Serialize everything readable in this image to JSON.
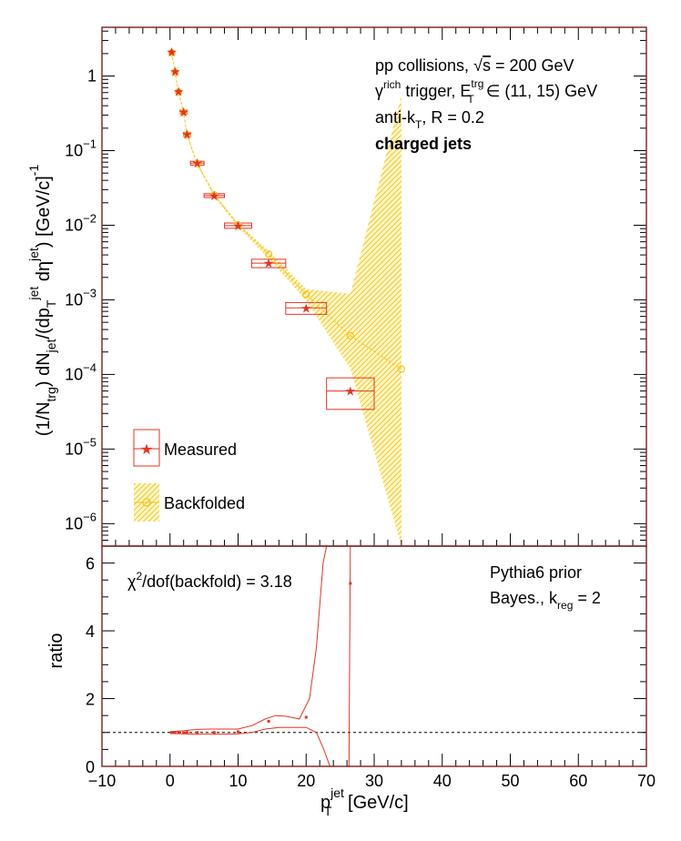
{
  "chart_data": [
    {
      "type": "scatter",
      "panel": "top",
      "yscale": "log",
      "ylim": [
        5e-07,
        4.5
      ],
      "xlim": [
        -10,
        70
      ],
      "ylabel": "(1/N_trg) dN_jet/(dp_T^jet dη^jet) [GeV/c]^-1",
      "grid": false,
      "legend_position": "bottom-left",
      "y_ticks": [
        {
          "v": 1,
          "base": "1",
          "exp": ""
        },
        {
          "v": 0.1,
          "base": "10",
          "exp": "−1"
        },
        {
          "v": 0.01,
          "base": "10",
          "exp": "−2"
        },
        {
          "v": 0.001,
          "base": "10",
          "exp": "−3"
        },
        {
          "v": 0.0001,
          "base": "10",
          "exp": "−4"
        },
        {
          "v": 1e-05,
          "base": "10",
          "exp": "−5"
        },
        {
          "v": 1e-06,
          "base": "10",
          "exp": "−6"
        }
      ],
      "annotations": {
        "line1_a": "pp collisions, ",
        "line1_sqrt": "√",
        "line1_s": "s",
        "line1_b": " = 200 GeV",
        "line2_gamma": "γ",
        "line2_rich": "rich",
        "line2_a": " trigger, E",
        "line2_trg": "trg",
        "line2_T": "T",
        "line2_b": " ∈ (11, 15) GeV",
        "line3_a": "anti-k",
        "line3_T": "T",
        "line3_b": ", R = 0.2",
        "line4": "charged jets"
      },
      "series": [
        {
          "name": "Measured",
          "color": "#e8321e",
          "marker": "star",
          "x": [
            0.25,
            0.75,
            1.25,
            2.0,
            2.5,
            4.0,
            6.5,
            10.0,
            14.5,
            20.0,
            26.5
          ],
          "y": [
            2.1,
            1.15,
            0.62,
            0.33,
            0.165,
            0.068,
            0.025,
            0.0099,
            0.0031,
            0.00078,
            6e-05
          ],
          "sys_box": [
            {
              "x0": 0.0,
              "x1": 0.5,
              "y0": 2.0,
              "y1": 2.2
            },
            {
              "x0": 0.5,
              "x1": 1.0,
              "y0": 1.09,
              "y1": 1.21
            },
            {
              "x0": 1.0,
              "x1": 1.5,
              "y0": 0.59,
              "y1": 0.65
            },
            {
              "x0": 1.5,
              "x1": 2.5,
              "y0": 0.31,
              "y1": 0.35
            },
            {
              "x0": 2.0,
              "x1": 3.0,
              "y0": 0.155,
              "y1": 0.175
            },
            {
              "x0": 3.0,
              "x1": 5.0,
              "y0": 0.064,
              "y1": 0.072
            },
            {
              "x0": 5.0,
              "x1": 8.0,
              "y0": 0.0235,
              "y1": 0.0265
            },
            {
              "x0": 8.0,
              "x1": 12.0,
              "y0": 0.0091,
              "y1": 0.0107
            },
            {
              "x0": 12.0,
              "x1": 17.0,
              "y0": 0.0027,
              "y1": 0.0035
            },
            {
              "x0": 17.0,
              "x1": 23.0,
              "y0": 0.00064,
              "y1": 0.00092
            },
            {
              "x0": 23.0,
              "x1": 30.0,
              "y0": 3.4e-05,
              "y1": 9e-05
            }
          ]
        },
        {
          "name": "Backfolded",
          "color": "#f5c518",
          "marker": "open-circle",
          "x": [
            0.25,
            0.75,
            1.25,
            2.0,
            2.5,
            4.0,
            6.5,
            10.0,
            14.5,
            20.0,
            26.5,
            34.0
          ],
          "y": [
            2.05,
            1.12,
            0.61,
            0.325,
            0.163,
            0.067,
            0.0255,
            0.0101,
            0.0041,
            0.00118,
            0.00033,
            0.000118
          ],
          "band_upper": [
            2.15,
            1.18,
            0.64,
            0.34,
            0.17,
            0.07,
            0.0268,
            0.0107,
            0.0045,
            0.0014,
            0.0012,
            0.55
          ],
          "band_lower": [
            1.95,
            1.06,
            0.58,
            0.31,
            0.155,
            0.064,
            0.0242,
            0.0095,
            0.0036,
            0.00098,
            0.00012,
            3e-07
          ]
        }
      ]
    },
    {
      "type": "line",
      "panel": "bottom",
      "xlim": [
        -10,
        70
      ],
      "ylim": [
        0,
        6.5
      ],
      "xlabel_base": "p",
      "xlabel_sup": "jet",
      "xlabel_sub": "T",
      "xlabel_unit": " [GeV/c]",
      "ylabel": "ratio",
      "x_ticks": [
        -10,
        0,
        10,
        20,
        30,
        40,
        50,
        60,
        70
      ],
      "x_tick_labels": [
        "−10",
        "0",
        "10",
        "20",
        "30",
        "40",
        "50",
        "60",
        "70"
      ],
      "y_ticks": [
        0,
        2,
        4,
        6
      ],
      "reference_line": 1,
      "annotations": {
        "chi2_chi": "χ",
        "chi2_sup": "2",
        "chi2_rest": "/dof(backfold) = 3.18",
        "prior": "Pythia6 prior",
        "bayes_a": "Bayes., k",
        "bayes_sub": "reg",
        "bayes_b": " = 2"
      },
      "series": [
        {
          "name": "",
          "color": "#e8321e",
          "x": [
            0.25,
            0.75,
            1.25,
            2.0,
            2.5,
            4.0,
            6.5,
            10.0,
            14.5,
            20.0,
            26.5
          ],
          "y": [
            1.0,
            1.0,
            1.0,
            0.99,
            1.0,
            1.0,
            1.0,
            1.02,
            1.33,
            1.45,
            5.4
          ],
          "band_upper_x": [
            0,
            2,
            4,
            6,
            8,
            10,
            12,
            14,
            15.5,
            17,
            19,
            20.5,
            21.5,
            22.5,
            23
          ],
          "band_upper_y": [
            1.02,
            1.05,
            1.09,
            1.1,
            1.1,
            1.1,
            1.2,
            1.4,
            1.5,
            1.48,
            1.4,
            2.0,
            3.5,
            6.0,
            6.5
          ],
          "band_lower_x": [
            0,
            2,
            4,
            6,
            8,
            10,
            12,
            14,
            16,
            18,
            20,
            21.5,
            22.5,
            23.5,
            24.5,
            25.5,
            26,
            26.3,
            26.5
          ],
          "band_lower_y": [
            0.97,
            0.96,
            0.95,
            0.95,
            0.95,
            0.96,
            1.0,
            1.1,
            1.15,
            1.15,
            1.15,
            1.0,
            0.55,
            0.0,
            0.0,
            0.0,
            0.0,
            0.0,
            6.5
          ]
        }
      ]
    }
  ]
}
